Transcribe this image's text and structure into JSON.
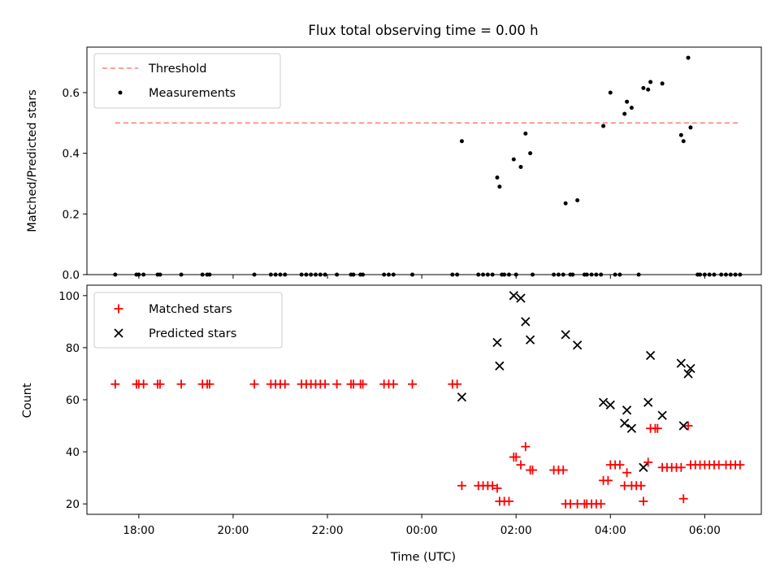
{
  "figure": {
    "title": "Flux total observing time = 0.00 h"
  },
  "colors": {
    "threshold": "#ff7f7f",
    "measurements": "#000000",
    "matched": "#ff0000",
    "predicted": "#000000"
  },
  "chart_data": [
    {
      "type": "scatter",
      "title": "Flux total observing time = 0.00 h",
      "xlabel": "",
      "ylabel": "Matched/Predicted stars",
      "x_unit": "hours since 00:00 UTC",
      "xlim": [
        -7.1,
        7.2
      ],
      "ylim": [
        0,
        0.75
      ],
      "yticks": [
        "0.0",
        "0.2",
        "0.4",
        "0.6"
      ],
      "legend_position": "upper-left",
      "threshold": {
        "name": "Threshold",
        "y": 0.5,
        "x_start": -6.5,
        "x_end": 6.75
      },
      "series": [
        {
          "name": "Measurements",
          "marker": "dot",
          "points": [
            [
              -6.5,
              0
            ],
            [
              -6.05,
              0
            ],
            [
              -6.0,
              0
            ],
            [
              -5.9,
              0
            ],
            [
              -5.6,
              0
            ],
            [
              -5.55,
              0
            ],
            [
              -5.1,
              0
            ],
            [
              -4.65,
              0
            ],
            [
              -4.55,
              0
            ],
            [
              -4.5,
              0
            ],
            [
              -3.55,
              0
            ],
            [
              -3.2,
              0
            ],
            [
              -3.1,
              0
            ],
            [
              -3.0,
              0
            ],
            [
              -2.9,
              0
            ],
            [
              -2.55,
              0
            ],
            [
              -2.45,
              0
            ],
            [
              -2.35,
              0
            ],
            [
              -2.25,
              0
            ],
            [
              -2.15,
              0
            ],
            [
              -2.05,
              0
            ],
            [
              -1.8,
              0
            ],
            [
              -1.5,
              0
            ],
            [
              -1.45,
              0
            ],
            [
              -1.3,
              0
            ],
            [
              -1.25,
              0
            ],
            [
              -0.8,
              0
            ],
            [
              -0.7,
              0
            ],
            [
              -0.6,
              0
            ],
            [
              -0.2,
              0
            ],
            [
              0.65,
              0
            ],
            [
              0.75,
              0
            ],
            [
              0.85,
              0.44
            ],
            [
              1.2,
              0
            ],
            [
              1.3,
              0
            ],
            [
              1.4,
              0
            ],
            [
              1.5,
              0
            ],
            [
              1.6,
              0.32
            ],
            [
              1.65,
              0.29
            ],
            [
              1.7,
              0
            ],
            [
              1.75,
              0
            ],
            [
              1.85,
              0
            ],
            [
              1.95,
              0.38
            ],
            [
              2.0,
              0
            ],
            [
              2.1,
              0.355
            ],
            [
              2.2,
              0.465
            ],
            [
              2.3,
              0.4
            ],
            [
              2.35,
              0
            ],
            [
              2.8,
              0
            ],
            [
              2.9,
              0
            ],
            [
              3.0,
              0
            ],
            [
              3.05,
              0.235
            ],
            [
              3.15,
              0
            ],
            [
              3.2,
              0
            ],
            [
              3.3,
              0.245
            ],
            [
              3.45,
              0
            ],
            [
              3.5,
              0
            ],
            [
              3.6,
              0
            ],
            [
              3.7,
              0
            ],
            [
              3.8,
              0
            ],
            [
              3.85,
              0.49
            ],
            [
              4.0,
              0.6
            ],
            [
              4.1,
              0
            ],
            [
              4.2,
              0
            ],
            [
              4.3,
              0.53
            ],
            [
              4.35,
              0.57
            ],
            [
              4.45,
              0.55
            ],
            [
              4.6,
              0
            ],
            [
              4.7,
              0.615
            ],
            [
              4.8,
              0.61
            ],
            [
              4.85,
              0.635
            ],
            [
              5.1,
              0.63
            ],
            [
              5.5,
              0.46
            ],
            [
              5.55,
              0.44
            ],
            [
              5.65,
              0.715
            ],
            [
              5.7,
              0.485
            ],
            [
              5.85,
              0
            ],
            [
              5.9,
              0
            ],
            [
              6.0,
              0
            ],
            [
              6.1,
              0
            ],
            [
              6.2,
              0
            ],
            [
              6.35,
              0
            ],
            [
              6.45,
              0
            ],
            [
              6.55,
              0
            ],
            [
              6.65,
              0
            ],
            [
              6.75,
              0
            ]
          ]
        }
      ]
    },
    {
      "type": "scatter",
      "title": "",
      "xlabel": "Time (UTC)",
      "ylabel": "Count",
      "x_unit": "hours since 00:00 UTC",
      "xlim": [
        -7.1,
        7.2
      ],
      "ylim": [
        16,
        104
      ],
      "xticks": [
        {
          "value": -6,
          "label": "18:00"
        },
        {
          "value": -4,
          "label": "20:00"
        },
        {
          "value": -2,
          "label": "22:00"
        },
        {
          "value": 0,
          "label": "00:00"
        },
        {
          "value": 2,
          "label": "02:00"
        },
        {
          "value": 4,
          "label": "04:00"
        },
        {
          "value": 6,
          "label": "06:00"
        }
      ],
      "yticks": [
        "20",
        "40",
        "60",
        "80",
        "100"
      ],
      "legend_position": "upper-left",
      "series": [
        {
          "name": "Matched stars",
          "marker": "plus",
          "points": [
            [
              -6.5,
              66
            ],
            [
              -6.05,
              66
            ],
            [
              -6.0,
              66
            ],
            [
              -5.9,
              66
            ],
            [
              -5.6,
              66
            ],
            [
              -5.55,
              66
            ],
            [
              -5.1,
              66
            ],
            [
              -4.65,
              66
            ],
            [
              -4.55,
              66
            ],
            [
              -4.5,
              66
            ],
            [
              -3.55,
              66
            ],
            [
              -3.2,
              66
            ],
            [
              -3.1,
              66
            ],
            [
              -3.0,
              66
            ],
            [
              -2.9,
              66
            ],
            [
              -2.55,
              66
            ],
            [
              -2.45,
              66
            ],
            [
              -2.35,
              66
            ],
            [
              -2.25,
              66
            ],
            [
              -2.15,
              66
            ],
            [
              -2.05,
              66
            ],
            [
              -1.8,
              66
            ],
            [
              -1.5,
              66
            ],
            [
              -1.45,
              66
            ],
            [
              -1.3,
              66
            ],
            [
              -1.25,
              66
            ],
            [
              -0.8,
              66
            ],
            [
              -0.7,
              66
            ],
            [
              -0.6,
              66
            ],
            [
              -0.2,
              66
            ],
            [
              0.65,
              66
            ],
            [
              0.75,
              66
            ],
            [
              0.85,
              27
            ],
            [
              1.2,
              27
            ],
            [
              1.3,
              27
            ],
            [
              1.4,
              27
            ],
            [
              1.5,
              27
            ],
            [
              1.6,
              26
            ],
            [
              1.65,
              21
            ],
            [
              1.75,
              21
            ],
            [
              1.85,
              21
            ],
            [
              1.95,
              38
            ],
            [
              2.0,
              38
            ],
            [
              2.1,
              35
            ],
            [
              2.2,
              42
            ],
            [
              2.3,
              33
            ],
            [
              2.35,
              33
            ],
            [
              2.8,
              33
            ],
            [
              2.9,
              33
            ],
            [
              3.0,
              33
            ],
            [
              3.05,
              20
            ],
            [
              3.15,
              20
            ],
            [
              3.3,
              20
            ],
            [
              3.45,
              20
            ],
            [
              3.5,
              20
            ],
            [
              3.6,
              20
            ],
            [
              3.7,
              20
            ],
            [
              3.8,
              20
            ],
            [
              3.85,
              29
            ],
            [
              3.95,
              29
            ],
            [
              4.0,
              35
            ],
            [
              4.1,
              35
            ],
            [
              4.2,
              35
            ],
            [
              4.3,
              27
            ],
            [
              4.35,
              32
            ],
            [
              4.45,
              27
            ],
            [
              4.55,
              27
            ],
            [
              4.65,
              27
            ],
            [
              4.7,
              21
            ],
            [
              4.8,
              36
            ],
            [
              4.85,
              49
            ],
            [
              4.95,
              49
            ],
            [
              5.0,
              49
            ],
            [
              5.1,
              34
            ],
            [
              5.2,
              34
            ],
            [
              5.3,
              34
            ],
            [
              5.4,
              34
            ],
            [
              5.5,
              34
            ],
            [
              5.55,
              22
            ],
            [
              5.65,
              50
            ],
            [
              5.7,
              35
            ],
            [
              5.8,
              35
            ],
            [
              5.9,
              35
            ],
            [
              6.0,
              35
            ],
            [
              6.1,
              35
            ],
            [
              6.2,
              35
            ],
            [
              6.3,
              35
            ],
            [
              6.45,
              35
            ],
            [
              6.55,
              35
            ],
            [
              6.65,
              35
            ],
            [
              6.75,
              35
            ]
          ]
        },
        {
          "name": "Predicted stars",
          "marker": "x",
          "points": [
            [
              0.85,
              61
            ],
            [
              1.6,
              82
            ],
            [
              1.65,
              73
            ],
            [
              1.95,
              100
            ],
            [
              2.1,
              99
            ],
            [
              2.2,
              90
            ],
            [
              2.3,
              83
            ],
            [
              3.05,
              85
            ],
            [
              3.3,
              81
            ],
            [
              3.85,
              59
            ],
            [
              4.0,
              58
            ],
            [
              4.3,
              51
            ],
            [
              4.35,
              56
            ],
            [
              4.45,
              49
            ],
            [
              4.7,
              34
            ],
            [
              4.8,
              59
            ],
            [
              4.85,
              77
            ],
            [
              5.1,
              54
            ],
            [
              5.5,
              74
            ],
            [
              5.55,
              50
            ],
            [
              5.65,
              70
            ],
            [
              5.7,
              72
            ]
          ]
        }
      ]
    }
  ]
}
